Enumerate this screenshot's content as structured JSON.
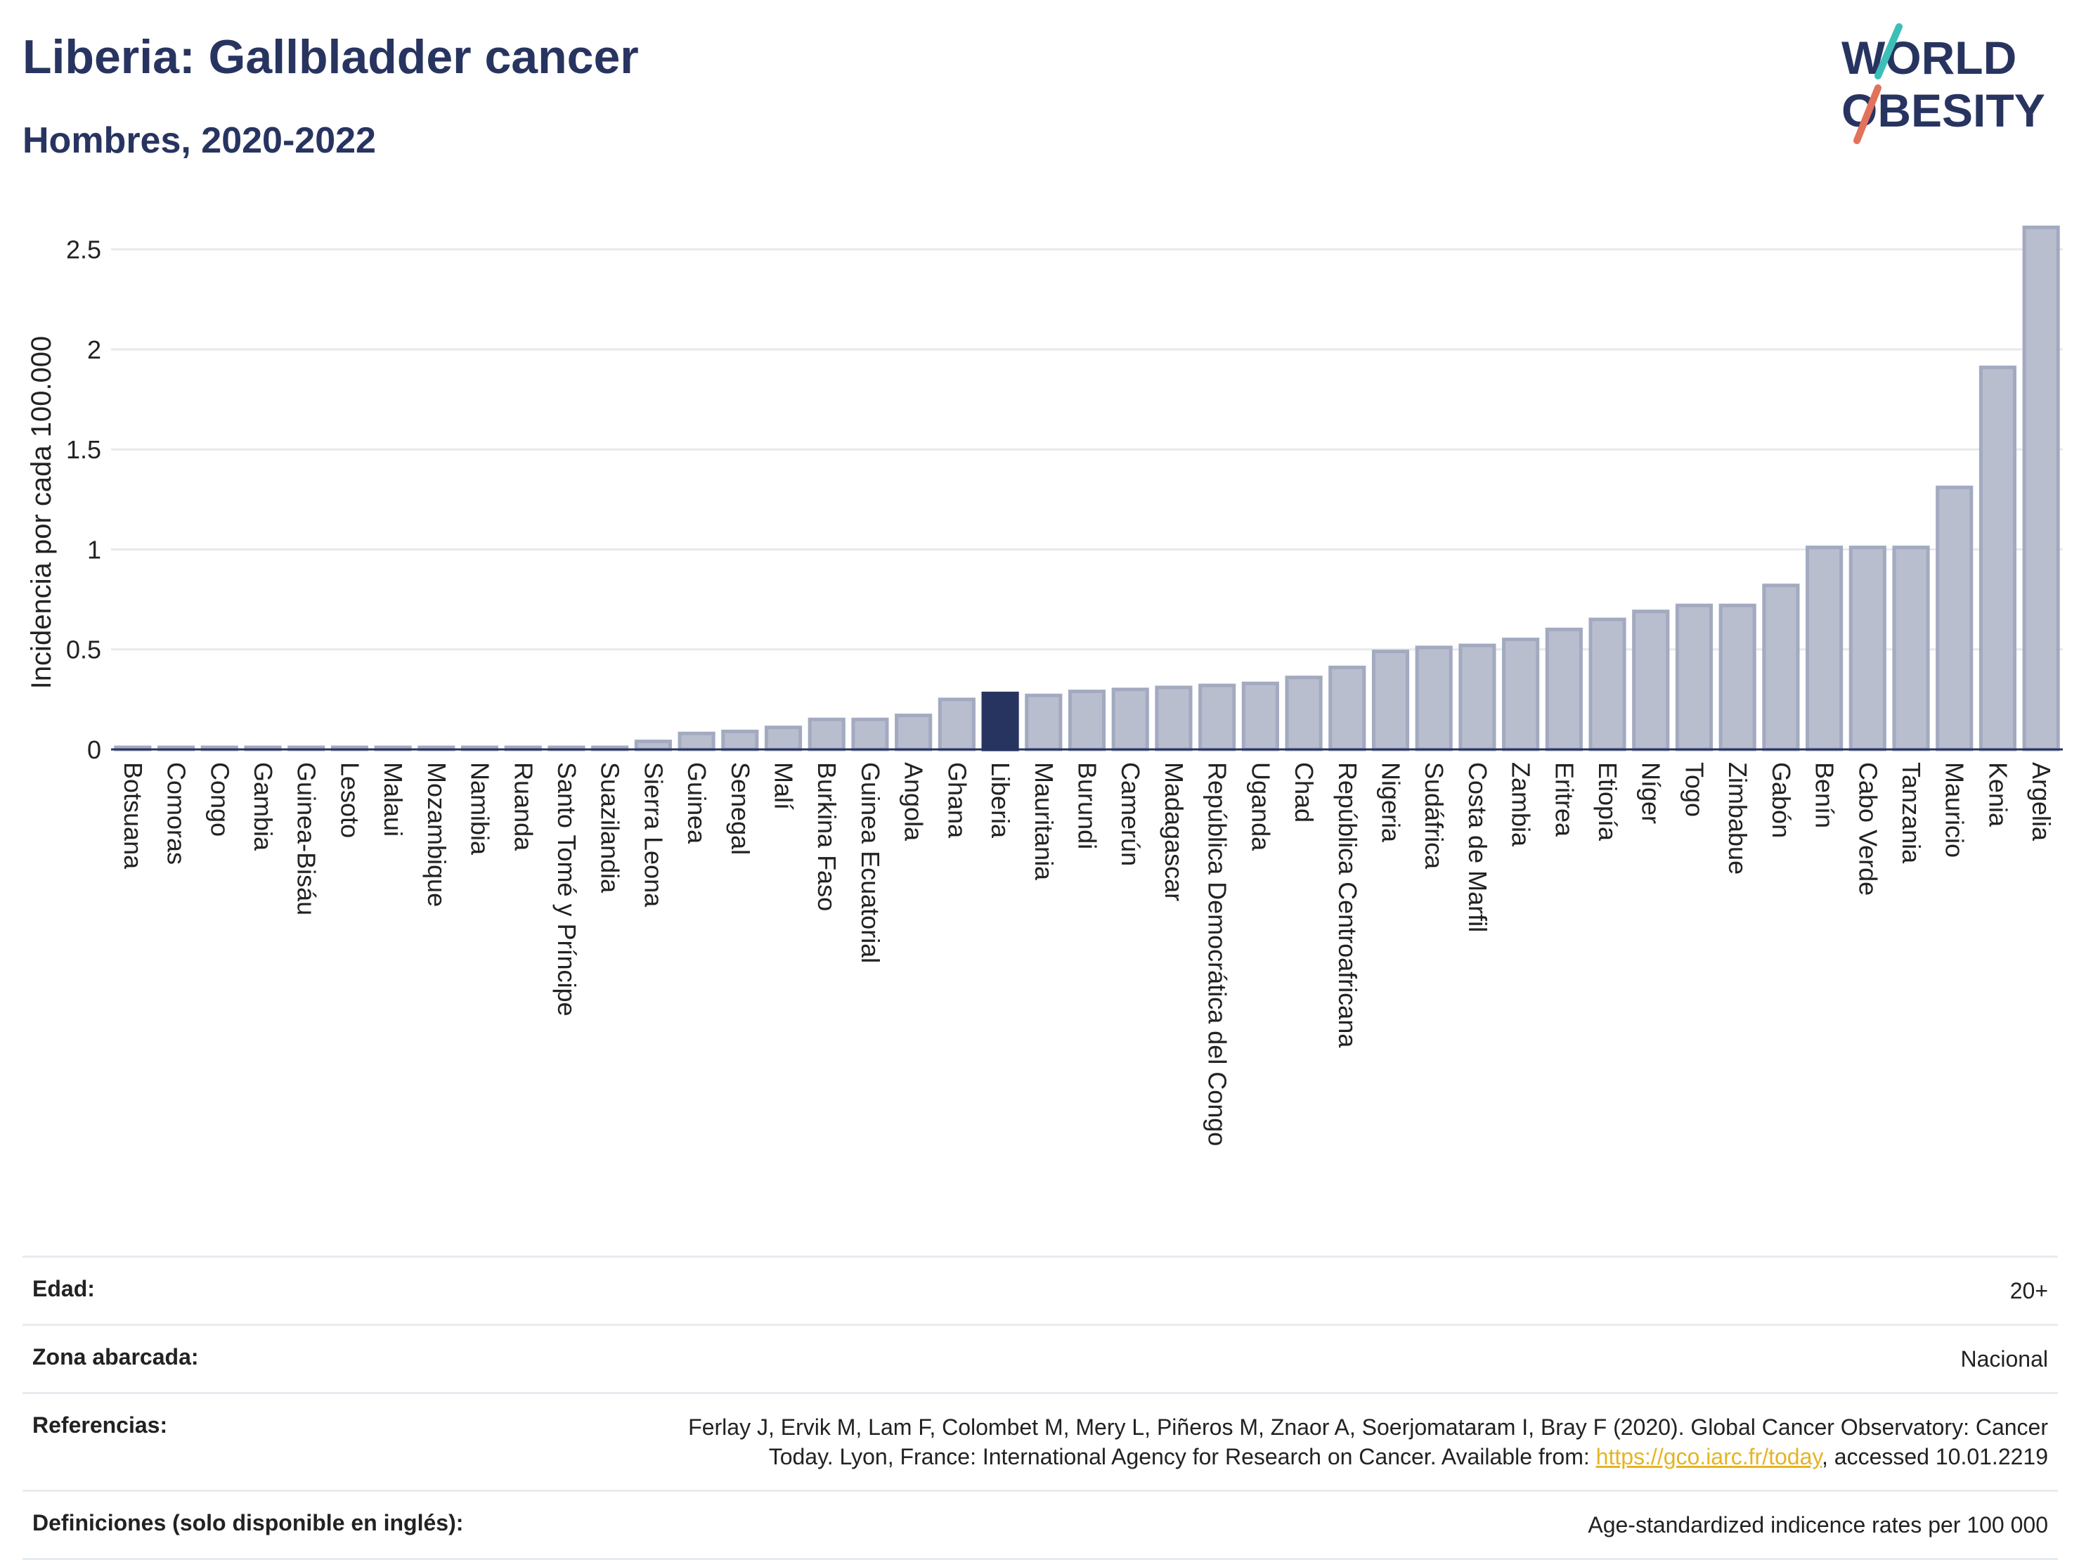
{
  "header": {
    "title": "Liberia: Gallbladder cancer",
    "subtitle": "Hombres, 2020-2022"
  },
  "logo": {
    "line1": "WORLD",
    "line2": "OBESITY",
    "colors": {
      "text": "#283460",
      "slash_top": "#3cbfb9",
      "slash_bottom": "#e2725b"
    }
  },
  "chart_data": {
    "type": "bar",
    "ylabel": "Incidencia por cada 100.000",
    "xlabel": "",
    "ylim": [
      0,
      2.65
    ],
    "yticks": [
      0,
      0.5,
      1,
      1.5,
      2,
      2.5
    ],
    "ytick_labels": [
      "0",
      "0.5",
      "1",
      "1.5",
      "2",
      "2.5"
    ],
    "grid": true,
    "highlight": "Liberia",
    "colors": {
      "bar": "#b8bece",
      "bar_border": "#a3aac0",
      "highlight": "#283460"
    },
    "categories": [
      "Botsuana",
      "Comoras",
      "Congo",
      "Gambia",
      "Guinea-Bisáu",
      "Lesoto",
      "Malaui",
      "Mozambique",
      "Namibia",
      "Ruanda",
      "Santo Tomé y Príncipe",
      "Suazilandia",
      "Sierra Leona",
      "Guinea",
      "Senegal",
      "Malí",
      "Burkina Faso",
      "Guinea Ecuatorial",
      "Angola",
      "Ghana",
      "Liberia",
      "Mauritania",
      "Burundi",
      "Camerún",
      "Madagascar",
      "República Democrática del Congo",
      "Uganda",
      "Chad",
      "República Centroafricana",
      "Nigeria",
      "Sudáfrica",
      "Costa de Marfil",
      "Zambia",
      "Eritrea",
      "Etiopía",
      "Níger",
      "Togo",
      "Zimbabue",
      "Gabón",
      "Benín",
      "Cabo Verde",
      "Tanzania",
      "Mauricio",
      "Kenia",
      "Argelia"
    ],
    "values": [
      0.01,
      0.01,
      0.01,
      0.01,
      0.01,
      0.01,
      0.01,
      0.01,
      0.01,
      0.01,
      0.01,
      0.01,
      0.04,
      0.08,
      0.09,
      0.11,
      0.15,
      0.15,
      0.17,
      0.25,
      0.28,
      0.27,
      0.29,
      0.3,
      0.31,
      0.32,
      0.33,
      0.36,
      0.41,
      0.49,
      0.51,
      0.52,
      0.55,
      0.6,
      0.65,
      0.69,
      0.72,
      0.72,
      0.82,
      1.01,
      1.01,
      1.01,
      1.31,
      1.91,
      2.61
    ]
  },
  "info": {
    "rows": [
      {
        "label": "Edad:",
        "value": "20+"
      },
      {
        "label": "Zona abarcada:",
        "value": "Nacional"
      },
      {
        "label": "Referencias:",
        "value_line1": "Ferlay J, Ervik M, Lam F, Colombet M, Mery L, Piñeros M, Znaor A, Soerjomataram I, Bray F (2020). Global Cancer Observatory: Cancer",
        "value_line2_pre": "Today. Lyon, France: International Agency for Research on Cancer. Available from: ",
        "link": "https://gco.iarc.fr/today",
        "value_line2_post": ", accessed 10.01.2219"
      },
      {
        "label": "Definiciones (solo disponible en inglés):",
        "value": "Age-standardized indicence rates per 100 000"
      }
    ]
  }
}
